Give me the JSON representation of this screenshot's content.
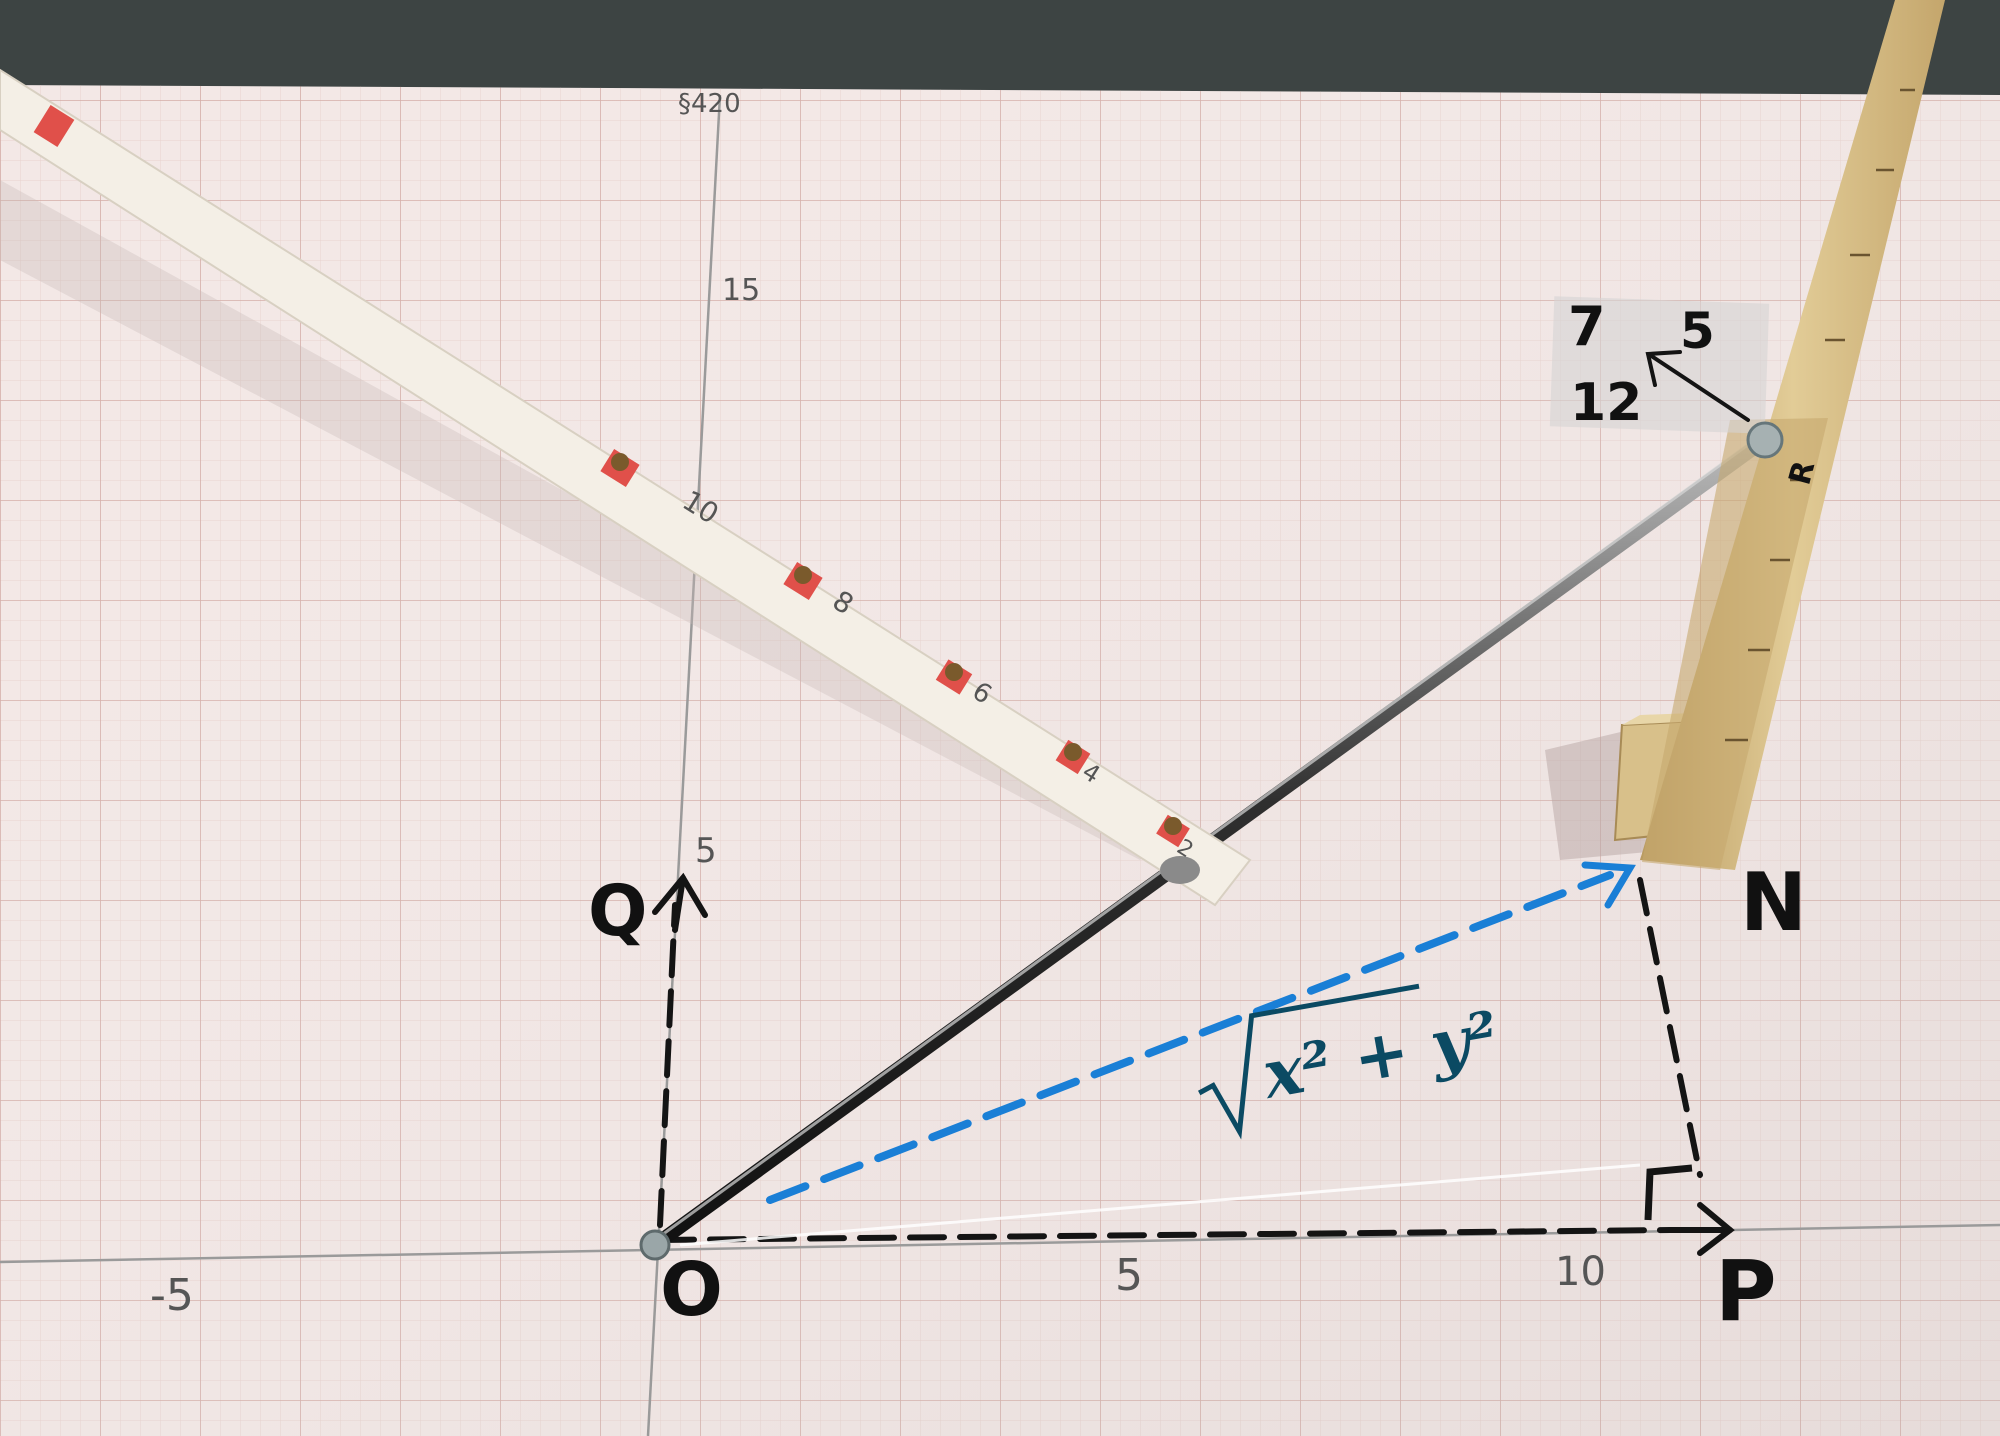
{
  "scene": {
    "description_free_labels": true,
    "colors": {
      "carpet": "#3d4443",
      "paper": "#f3e8e6",
      "grid_minor": "#e5c9c5",
      "grid_major": "#cfa8a2",
      "axis": "#9a9a9a",
      "ink": "#141414",
      "blue_ink": "#1a7fd6",
      "rod": "#3a3a3a",
      "wood": "#d8c08a",
      "straw": "#f4efe6",
      "straw_mark_red": "#e0504a",
      "straw_mark_brown": "#7a5a2c"
    }
  },
  "axis_ticks": {
    "y_top": "§420",
    "y_15": "15",
    "y_10": "10",
    "y_5": "5",
    "x_neg5": "-5",
    "x_5": "5",
    "x_10": "10"
  },
  "point_labels": {
    "origin": "O",
    "p": "P",
    "q": "Q",
    "n": "N",
    "r": "R"
  },
  "formula": {
    "radicand": "x² + y²"
  },
  "sticker": {
    "n7": "7",
    "n5": "5",
    "n12": "12"
  },
  "straw_marks": [
    "10",
    "8",
    "6",
    "4",
    "2"
  ]
}
